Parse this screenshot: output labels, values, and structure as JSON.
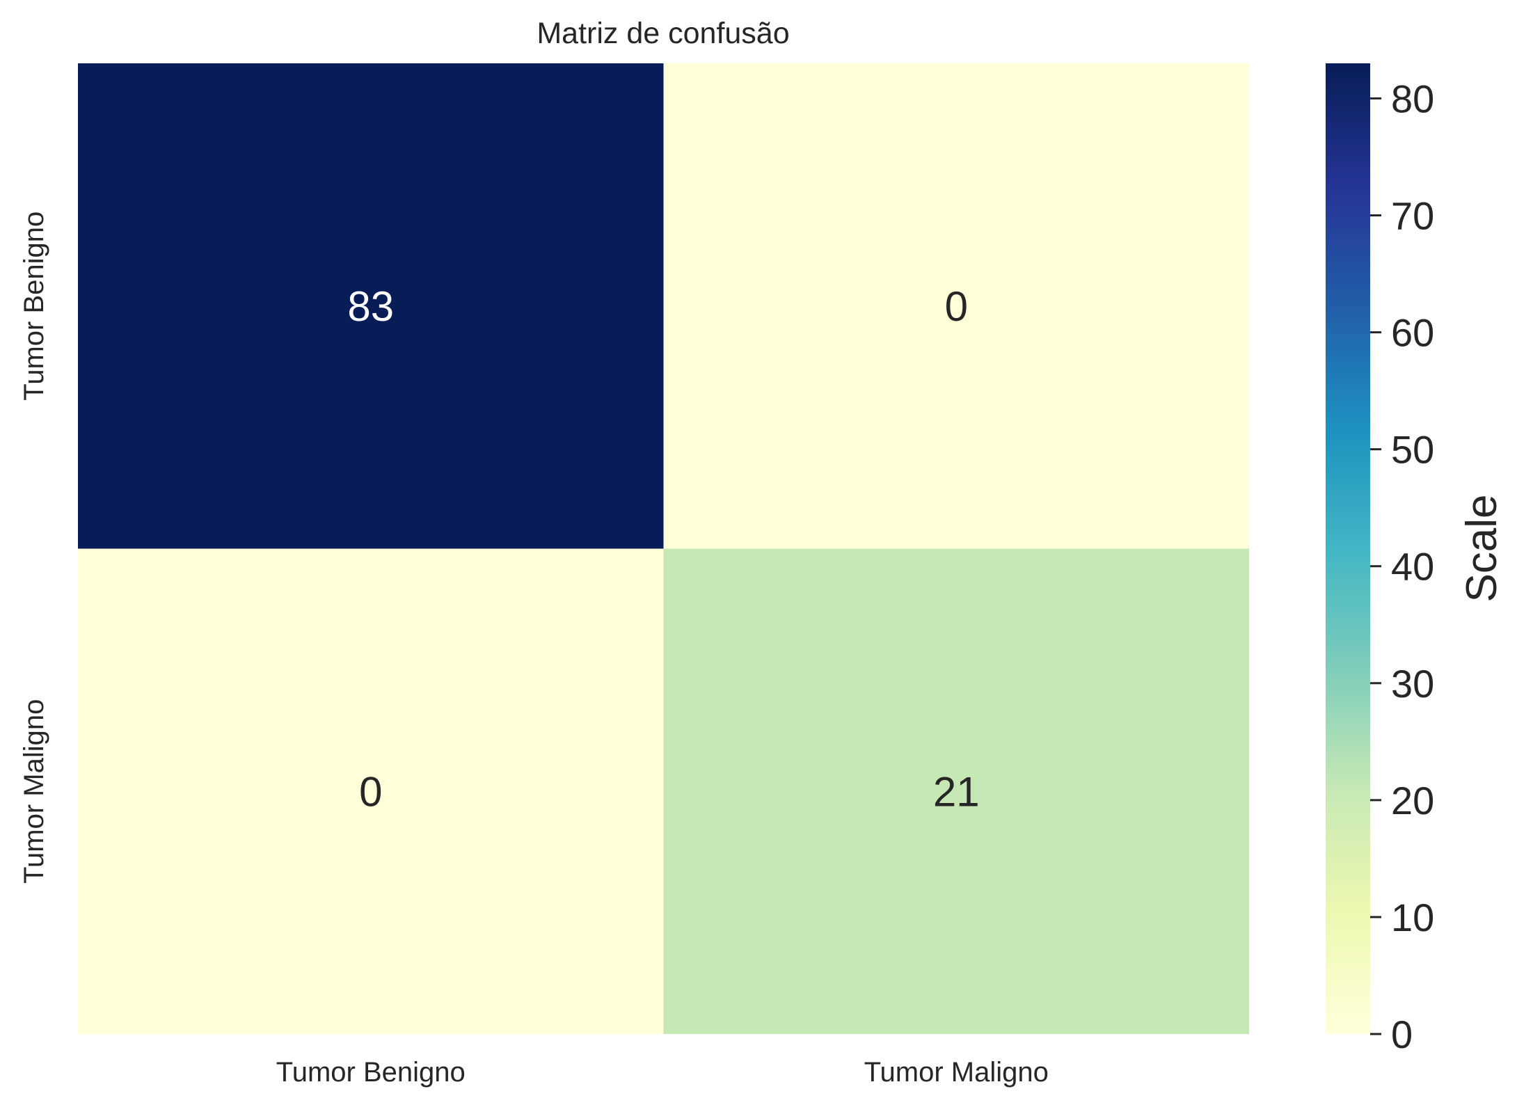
{
  "chart_data": {
    "type": "heatmap",
    "title": "Matriz de confusão",
    "xlabel": "",
    "ylabel": "",
    "x_categories": [
      "Tumor Benigno",
      "Tumor Maligno"
    ],
    "y_categories": [
      "Tumor Benigno",
      "Tumor Maligno"
    ],
    "values": [
      [
        83,
        0
      ],
      [
        0,
        21
      ]
    ],
    "annotations": [
      [
        "83",
        "0"
      ],
      [
        "0",
        "21"
      ]
    ],
    "colormap": "YlGnBu",
    "vmin": 0,
    "vmax": 83,
    "colorbar": {
      "label": "Scale",
      "ticks": [
        0,
        10,
        20,
        30,
        40,
        50,
        60,
        70,
        80
      ],
      "tick_labels": [
        "0",
        "10",
        "20",
        "30",
        "40",
        "50",
        "60",
        "70",
        "80"
      ]
    },
    "grid": false,
    "legend": "none"
  },
  "colors": {
    "text": "#262626",
    "annot_dark": "#ffffff",
    "annot_light": "#262626",
    "colormap_stops": [
      "#ffffd9",
      "#edf8b1",
      "#c7e9b4",
      "#7fcdbb",
      "#41b6c4",
      "#1d91c0",
      "#225ea8",
      "#253494",
      "#081d58"
    ]
  }
}
